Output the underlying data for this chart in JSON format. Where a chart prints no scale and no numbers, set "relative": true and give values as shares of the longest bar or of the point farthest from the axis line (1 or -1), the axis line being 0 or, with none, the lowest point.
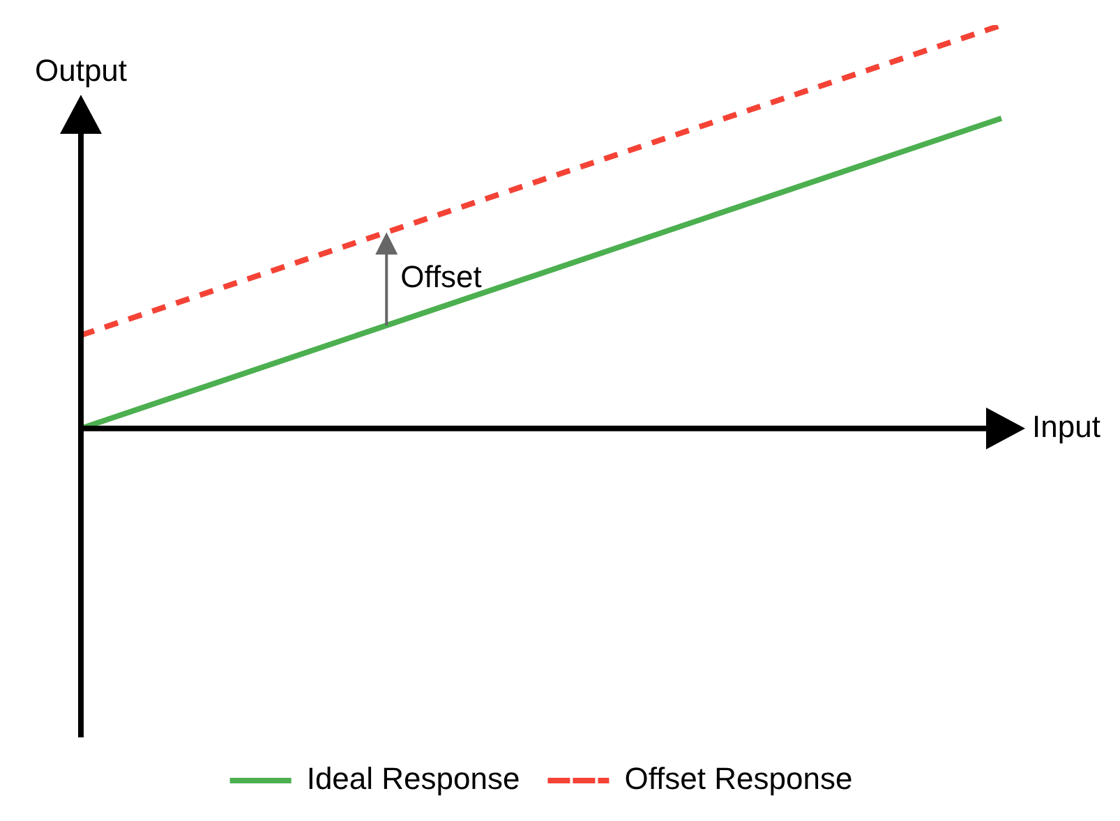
{
  "chart_data": {
    "type": "line",
    "relative": true,
    "xlabel": "Input",
    "ylabel": "Output",
    "categories": [
      null,
      null
    ],
    "legend": "bottom",
    "annotations": [
      "Offset"
    ],
    "series": [
      {
        "name": "Ideal Response",
        "color": "#4caf50",
        "values": [
          0,
          0.769
        ],
        "line_style": "solid"
      },
      {
        "name": "Offset Response",
        "color": "#f44336",
        "values": [
          0.231,
          1
        ],
        "line_style": "dashed"
      }
    ]
  }
}
